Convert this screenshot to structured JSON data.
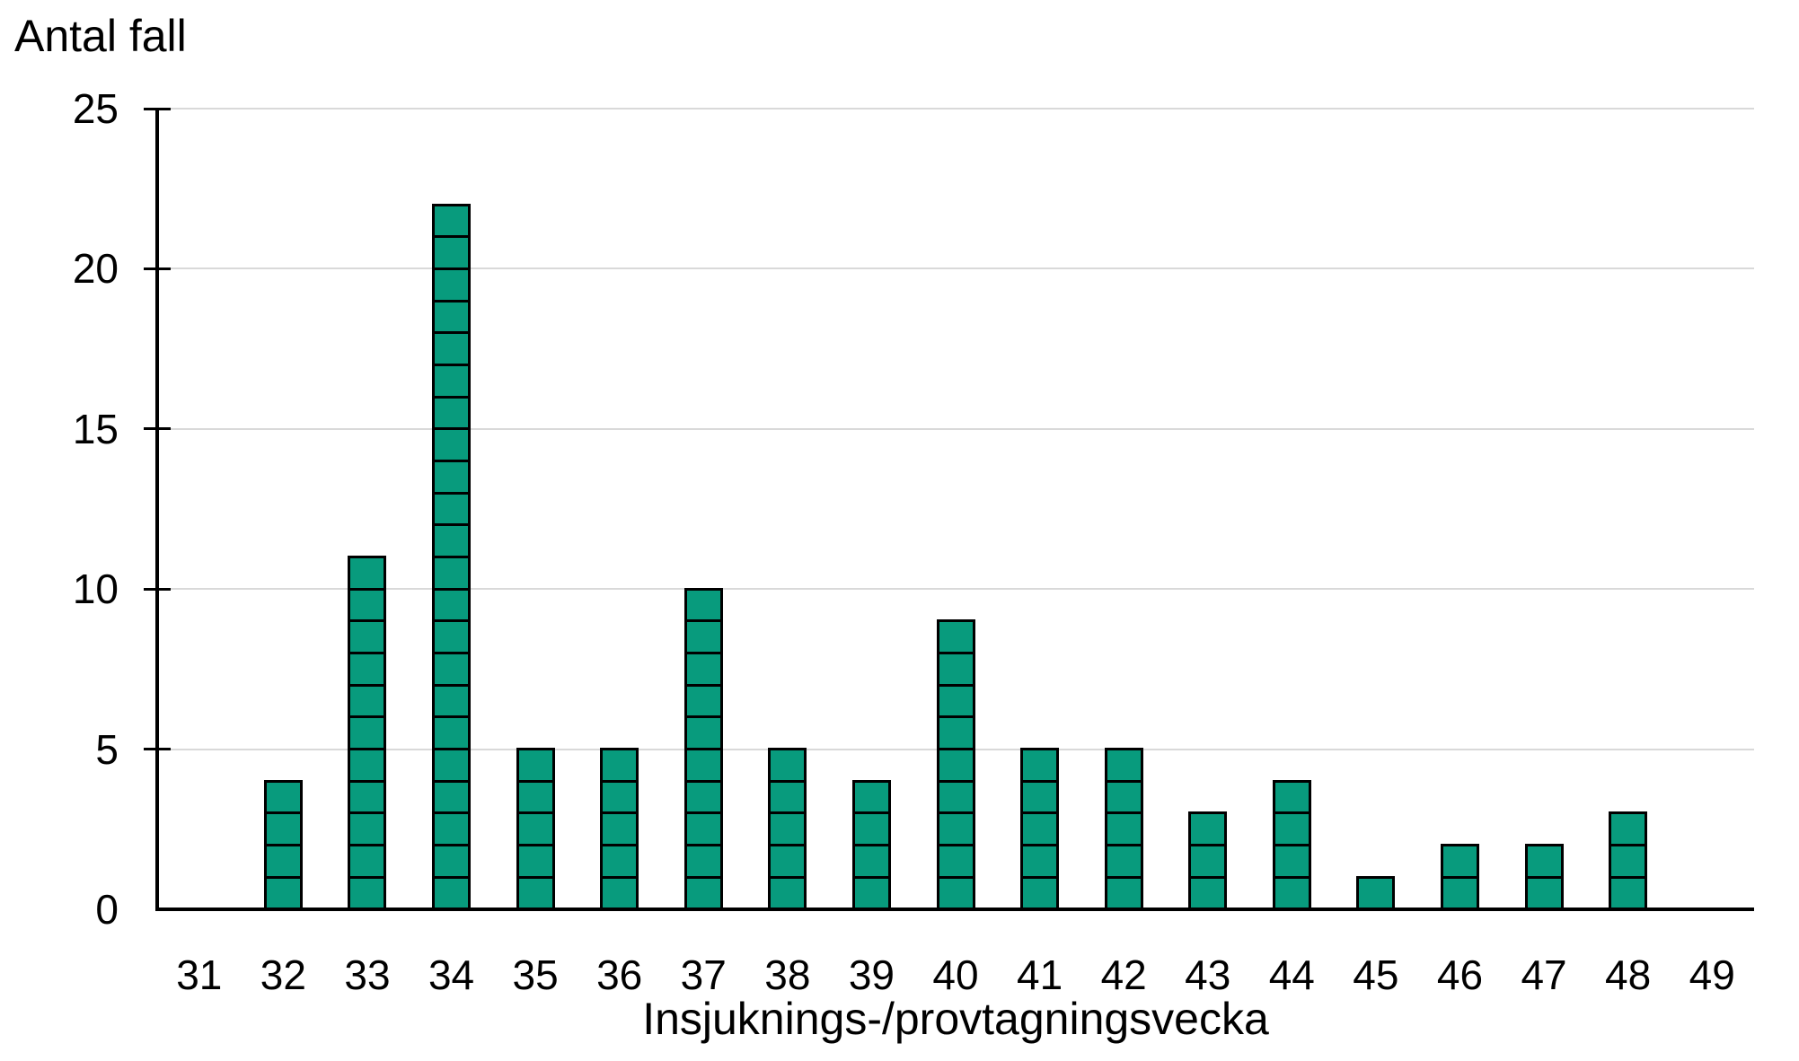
{
  "chart": {
    "title": "Antal fall",
    "xlabel": "Insjuknings-/provtagningsvecka"
  },
  "chart_data": {
    "type": "bar",
    "title": "Antal fall",
    "ylabel": "Antal fall",
    "xlabel": "Insjuknings-/provtagningsvecka",
    "categories": [
      31,
      32,
      33,
      34,
      35,
      36,
      37,
      38,
      39,
      40,
      41,
      42,
      43,
      44,
      45,
      46,
      47,
      48,
      49
    ],
    "values": [
      0,
      4,
      11,
      22,
      5,
      5,
      10,
      5,
      4,
      9,
      5,
      5,
      3,
      4,
      1,
      2,
      2,
      3,
      0
    ],
    "yticks": [
      0,
      5,
      10,
      15,
      20,
      25
    ],
    "ylim": [
      0,
      25
    ],
    "grid": "horizontal-major-gridlines",
    "legend": "none",
    "bar_style": "each bar segmented into one-unit blocks (one case per block)",
    "colors": {
      "bar_fill": "#089b7d",
      "bar_border": "#000000",
      "gridline": "#d9d9d9",
      "axis": "#000000",
      "text": "#000000",
      "background": "#ffffff"
    }
  }
}
